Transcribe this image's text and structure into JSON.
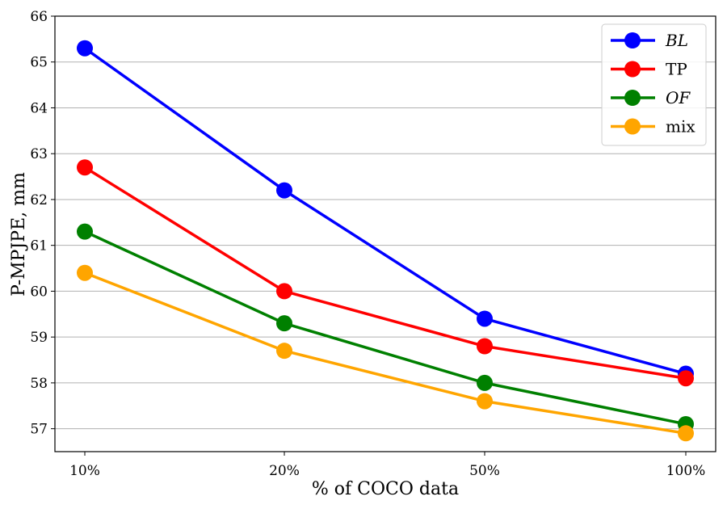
{
  "chart_data": {
    "type": "line",
    "title": "",
    "xlabel": "% of COCO data",
    "ylabel": "P-MPJPE, mm",
    "categories": [
      "10%",
      "20%",
      "50%",
      "100%"
    ],
    "ylim": [
      56.5,
      66
    ],
    "yticks": [
      57,
      58,
      59,
      60,
      61,
      62,
      63,
      64,
      65,
      66
    ],
    "ytick_labels": [
      "57",
      "58",
      "59",
      "60",
      "61",
      "62",
      "63",
      "64",
      "65",
      "66"
    ],
    "grid": "horizontal",
    "legend_position": "top-right",
    "series": [
      {
        "name": "BL",
        "italic": true,
        "color": "#0000ff",
        "values": [
          65.3,
          62.2,
          59.4,
          58.2
        ]
      },
      {
        "name": "TP",
        "italic": false,
        "color": "#ff0000",
        "values": [
          62.7,
          60.0,
          58.8,
          58.1
        ]
      },
      {
        "name": "OF",
        "italic": true,
        "color": "#008000",
        "values": [
          61.3,
          59.3,
          58.0,
          57.1
        ]
      },
      {
        "name": "mix",
        "italic": false,
        "color": "#ffa500",
        "values": [
          60.4,
          58.7,
          57.6,
          56.9
        ]
      }
    ]
  }
}
